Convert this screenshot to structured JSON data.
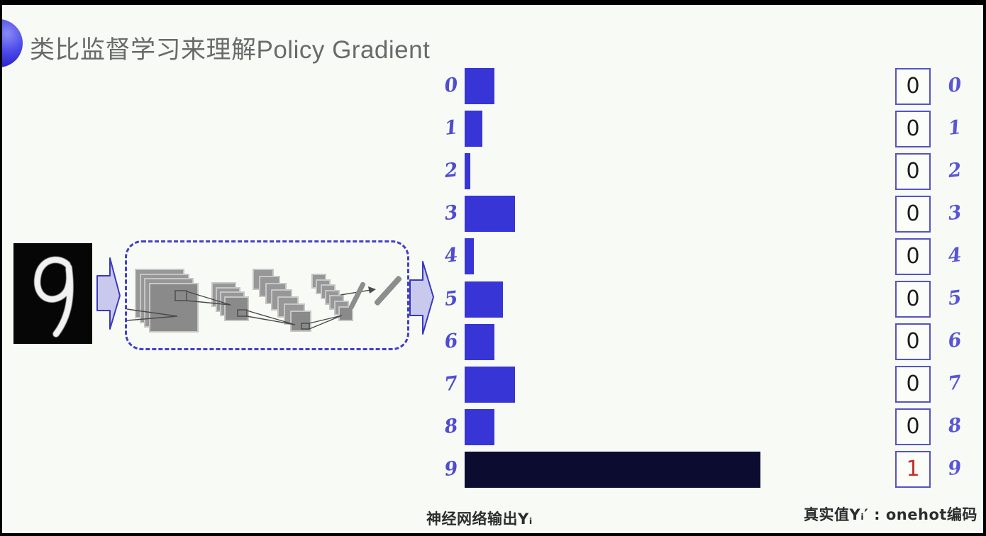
{
  "title": {
    "text": "类比监督学习来理解Policy Gradient",
    "color": "#6a6a6a"
  },
  "icons": {
    "bullet": "sphere-icon",
    "flow": "block-arrow-right-icon",
    "input": "mnist-digit-image",
    "network": "cnn-layers-diagram"
  },
  "input_digit": {
    "value": "9"
  },
  "chart_data": {
    "type": "bar",
    "orientation": "horizontal",
    "title": "神经网络输出Yᵢ",
    "categories": [
      "0",
      "1",
      "2",
      "3",
      "4",
      "5",
      "6",
      "7",
      "8",
      "9"
    ],
    "values": [
      0.1,
      0.06,
      0.02,
      0.17,
      0.03,
      0.13,
      0.1,
      0.17,
      0.1,
      1.0
    ],
    "value_note": "bar length relative to longest bar (digit 9)",
    "highlight_index": 9,
    "bar_color": "#3735d6",
    "highlight_color": "#0c0c31",
    "tick_color": "#4f4cd0",
    "grid": false,
    "legend": "none"
  },
  "onehot": {
    "caption": "真实值Yᵢ′ : onehot编码",
    "labels": [
      "0",
      "1",
      "2",
      "3",
      "4",
      "5",
      "6",
      "7",
      "8",
      "9"
    ],
    "values": [
      "0",
      "0",
      "0",
      "0",
      "0",
      "0",
      "0",
      "0",
      "0",
      "1"
    ],
    "highlight_index": 9,
    "value_color": "#1c1c1c",
    "highlight_value_color": "#c2302a",
    "box_border_color": "#5553c8",
    "tick_color": "#5a55d5"
  },
  "colors": {
    "background": "#f8fbf5",
    "frame": "#000000",
    "caption_text": "#2d2d2d",
    "arrow_fill": "#c9c9ee",
    "arrow_stroke": "#3b39c0",
    "cnn_dash": "#4340c8"
  }
}
